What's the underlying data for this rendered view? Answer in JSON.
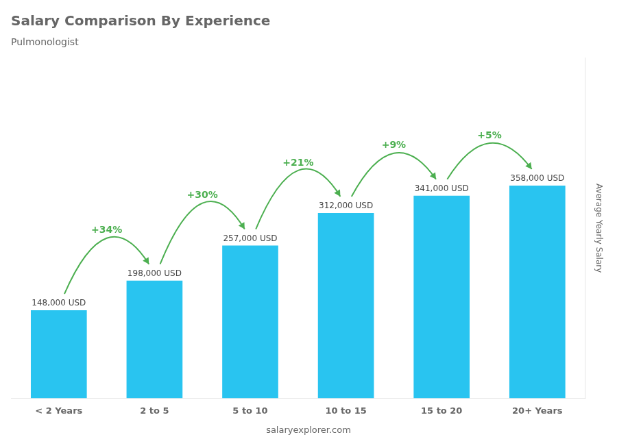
{
  "chart_data": {
    "type": "bar",
    "title": "Salary Comparison By Experience",
    "subtitle": "Pulmonologist",
    "y_label": "Average Yearly Salary",
    "categories": [
      "< 2 Years",
      "2 to 5",
      "5 to 10",
      "10 to 15",
      "15 to 20",
      "20+ Years"
    ],
    "values": [
      148000,
      198000,
      257000,
      312000,
      341000,
      358000
    ],
    "value_labels": [
      "148,000 USD",
      "198,000 USD",
      "257,000 USD",
      "312,000 USD",
      "341,000 USD",
      "358,000 USD"
    ],
    "data_labels": true,
    "annotations": [
      "+34%",
      "+30%",
      "+21%",
      "+9%",
      "+5%"
    ],
    "footer": "salaryexplorer.com",
    "color": "#29c4f0",
    "ylim": [
      0,
      572800
    ],
    "tick_labels": "x",
    "grid": false
  }
}
